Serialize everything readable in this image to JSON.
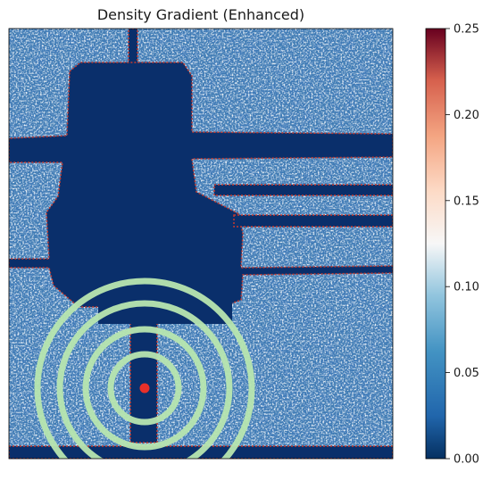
{
  "chart_data": {
    "type": "heatmap",
    "title": "Density Gradient (Enhanced)",
    "xlabel": "",
    "ylabel": "",
    "colormap": "RdBu_r",
    "colorbar": {
      "range": [
        0.0,
        0.25
      ],
      "ticks": [
        0.0,
        0.05,
        0.1,
        0.15,
        0.2,
        0.25
      ],
      "tick_labels": [
        "0.00",
        "0.05",
        "0.10",
        "0.15",
        "0.20",
        "0.25"
      ],
      "placement": "right"
    },
    "colors": {
      "low": "#0a2f6b",
      "mid": "#f7f7f7",
      "high": "#67001f",
      "marker": "#e8302a",
      "rings": "#b8e6b0"
    },
    "marker": {
      "label": "",
      "shape": "dot"
    },
    "rings": {
      "count": 4
    },
    "axes_visible": false,
    "grid": false
  }
}
